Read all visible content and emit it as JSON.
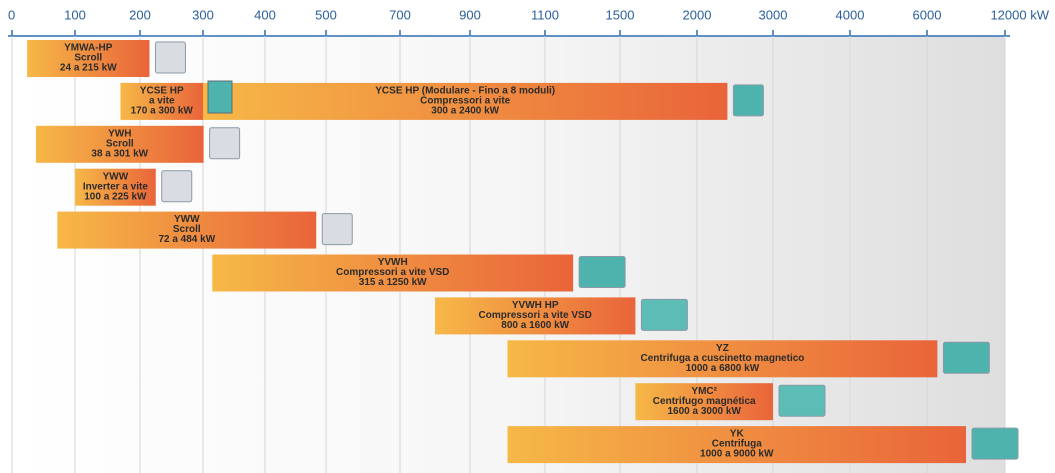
{
  "chart_data": {
    "type": "range_bar",
    "xticks": [
      0,
      100,
      200,
      300,
      400,
      500,
      700,
      900,
      1100,
      1500,
      2000,
      3000,
      4000,
      6000,
      {
        "value": 12000,
        "label": "12000 kW"
      }
    ],
    "xlim": [
      0,
      12000
    ],
    "grid": true,
    "bars": [
      {
        "name": "YMWA-HP",
        "detail": "Scroll",
        "range_label": "24 a 215 kW",
        "low": 24,
        "high": 215
      },
      {
        "name": "YCSE HP",
        "detail": "a vite",
        "range_label": "170 a 300 kW",
        "low": 170,
        "high": 300
      },
      {
        "name": "YCSE HP (Modulare - Fino a 8 moduli)",
        "detail": "Compressori a vite",
        "range_label": "300 a 2400 kW",
        "low": 300,
        "high": 2400
      },
      {
        "name": "YWH",
        "detail": "Scroll",
        "range_label": "38 a 301 kW",
        "low": 38,
        "high": 301
      },
      {
        "name": "YWW",
        "detail": "Inverter a vite",
        "range_label": "100 a 225 kW",
        "low": 100,
        "high": 225
      },
      {
        "name": "YWW",
        "detail": "Scroll",
        "range_label": "72 a 484 kW",
        "low": 72,
        "high": 484
      },
      {
        "name": "YVWH",
        "detail": "Compressori a vite VSD",
        "range_label": "315 a 1250 kW",
        "low": 315,
        "high": 1250
      },
      {
        "name": "YVWH HP",
        "detail": "Compressori a vite VSD",
        "range_label": "800 a 1600 kW",
        "low": 800,
        "high": 1600
      },
      {
        "name": "YZ",
        "detail": "Centrifuga a cuscinetto magnetico",
        "range_label": "1000 a 6800 kW",
        "low": 1000,
        "high": 6800
      },
      {
        "name": "YMC²",
        "detail": "Centrifugo magnética",
        "range_label": "1600 a 3000 kW",
        "low": 1600,
        "high": 3000
      },
      {
        "name": "YK",
        "detail": "Centrifuga",
        "range_label": "1000 a 9000 kW",
        "low": 1000,
        "high": 9000
      }
    ]
  }
}
